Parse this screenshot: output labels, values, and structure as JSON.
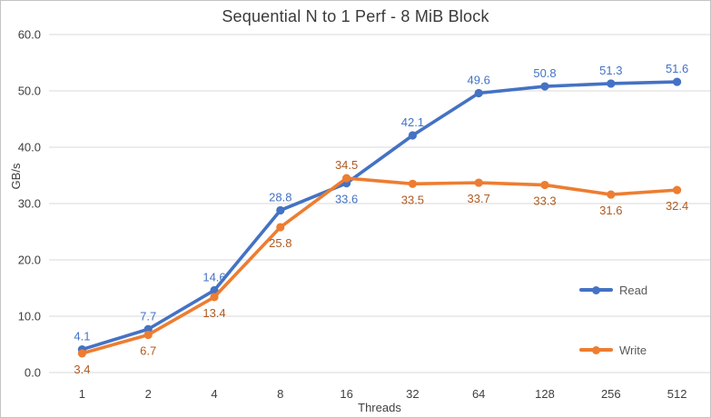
{
  "chart_data": {
    "type": "line",
    "title": "Sequential N to 1 Perf - 8 MiB Block",
    "xlabel": "Threads",
    "ylabel": "GB/s",
    "categories": [
      "1",
      "2",
      "4",
      "8",
      "16",
      "32",
      "64",
      "128",
      "256",
      "512"
    ],
    "series": [
      {
        "name": "Read",
        "color": "#4472C4",
        "label_color": "#4472C4",
        "values": [
          4.1,
          7.7,
          14.6,
          28.8,
          33.6,
          42.1,
          49.6,
          50.8,
          51.3,
          51.6
        ],
        "label_positions": [
          "above",
          "above",
          "above",
          "above",
          "below",
          "above",
          "above",
          "above",
          "above",
          "above"
        ]
      },
      {
        "name": "Write",
        "color": "#ED7D31",
        "label_color": "#AE5A21",
        "values": [
          3.4,
          6.7,
          13.4,
          25.8,
          34.5,
          33.5,
          33.7,
          33.3,
          31.6,
          32.4
        ],
        "label_positions": [
          "below",
          "below",
          "below",
          "below",
          "above",
          "below",
          "below",
          "below",
          "below",
          "below"
        ]
      }
    ],
    "ylim": [
      0,
      60
    ],
    "ytick_step": 10,
    "ytick_labels": [
      "0.0",
      "10.0",
      "20.0",
      "30.0",
      "40.0",
      "50.0",
      "60.0"
    ],
    "grid": true,
    "legend_position": "inside-right",
    "data_labels": true,
    "colors": {
      "grid": "#D9D9D9",
      "axis_text": "#3F3F3F",
      "title_text": "#3A3A3A",
      "legend_text": "#595959",
      "frame_border": "#C3C3C3",
      "background": "#FFFFFF"
    }
  }
}
